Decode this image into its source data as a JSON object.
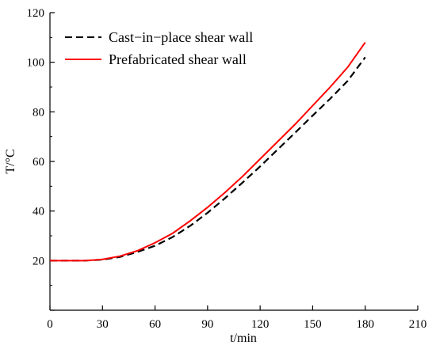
{
  "chart_data": {
    "type": "line",
    "xlabel": "t/min",
    "ylabel": "T/°C",
    "xlim": [
      0,
      210
    ],
    "ylim": [
      0,
      120
    ],
    "xticks": [
      0,
      30,
      60,
      90,
      120,
      150,
      180,
      210
    ],
    "yticks": [
      0,
      20,
      40,
      60,
      80,
      100,
      120
    ],
    "ytick_labels_shown": [
      20,
      40,
      60,
      80,
      100,
      120
    ],
    "grid": false,
    "legend_position": "top-left",
    "series": [
      {
        "name": "Cast−in−place  shear wall",
        "style": "dashed",
        "color": "#000000",
        "x": [
          0,
          10,
          20,
          30,
          40,
          50,
          60,
          70,
          80,
          90,
          100,
          110,
          120,
          130,
          140,
          150,
          160,
          170,
          180
        ],
        "y": [
          20,
          20,
          20,
          20.4,
          21.5,
          23.5,
          26,
          29.5,
          34,
          39.3,
          45.2,
          51.5,
          58,
          64.8,
          71.6,
          78.5,
          85.3,
          92.5,
          102
        ]
      },
      {
        "name": "Prefabricated  shear wall",
        "style": "solid",
        "color": "#ff0000",
        "x": [
          0,
          10,
          20,
          30,
          40,
          50,
          60,
          70,
          80,
          90,
          100,
          110,
          120,
          130,
          140,
          150,
          160,
          170,
          180
        ],
        "y": [
          20,
          20,
          20,
          20.5,
          21.8,
          24,
          27.2,
          31,
          36,
          41.5,
          47.5,
          54,
          61,
          68,
          75,
          82.5,
          90,
          98,
          108
        ]
      }
    ]
  }
}
